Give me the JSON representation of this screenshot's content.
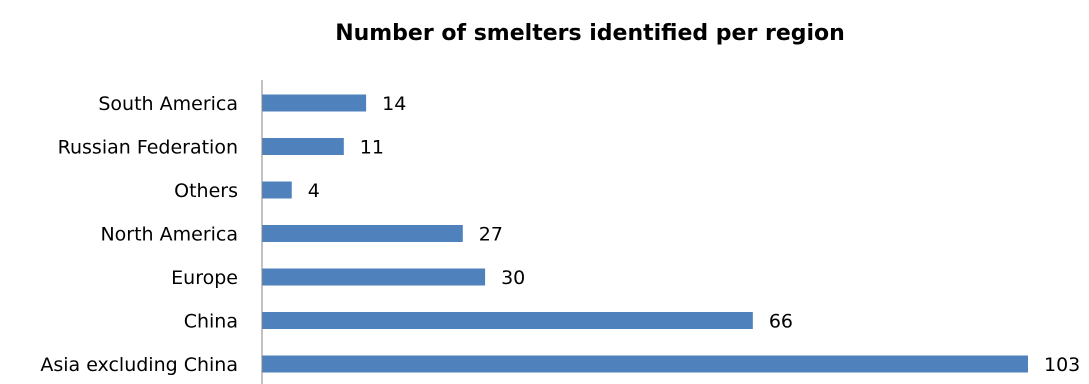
{
  "chart_data": {
    "type": "bar",
    "orientation": "horizontal",
    "title": "Number of smelters identified per region",
    "xlabel": "",
    "ylabel": "",
    "categories": [
      "South America",
      "Russian Federation",
      "Others",
      "North America",
      "Europe",
      "China",
      "Asia excluding China"
    ],
    "values": [
      14,
      11,
      4,
      27,
      30,
      66,
      103
    ],
    "xlim": [
      0,
      103
    ],
    "bar_color": "#4F81BD",
    "axis_color": "#868686",
    "grid": false,
    "legend": "none",
    "data_labels": true
  }
}
